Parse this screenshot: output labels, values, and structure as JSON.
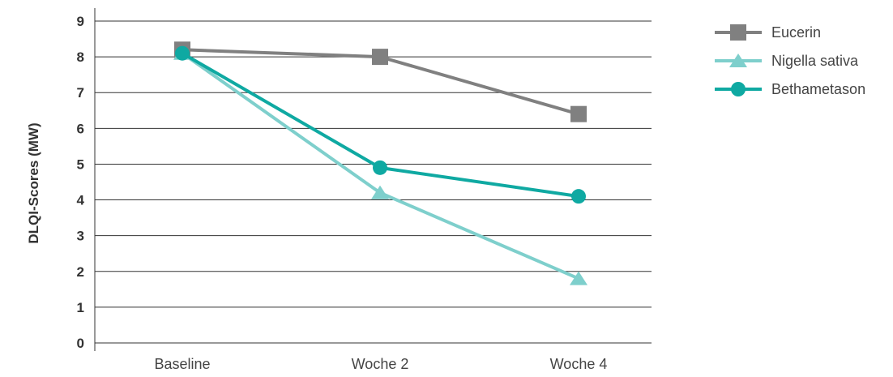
{
  "chart_data": {
    "type": "line",
    "title": "",
    "xlabel": "",
    "ylabel": "DLQI-Scores (MW)",
    "categories": [
      "Baseline",
      "Woche 2",
      "Woche 4"
    ],
    "ylim": [
      0,
      9
    ],
    "yticks": [
      "0",
      "1",
      "2",
      "3",
      "4",
      "5",
      "6",
      "7",
      "8",
      "9"
    ],
    "grid": true,
    "legend_position": "top-right",
    "series": [
      {
        "name": "Eucerin",
        "values": [
          8.2,
          8.0,
          6.4
        ],
        "color": "#808080",
        "marker": "square"
      },
      {
        "name": "Nigella sativa",
        "values": [
          8.1,
          4.2,
          1.8
        ],
        "color": "#7ecfcc",
        "marker": "triangle"
      },
      {
        "name": "Bethametason",
        "values": [
          8.1,
          4.9,
          4.1
        ],
        "color": "#0fa9a2",
        "marker": "circle"
      }
    ]
  }
}
